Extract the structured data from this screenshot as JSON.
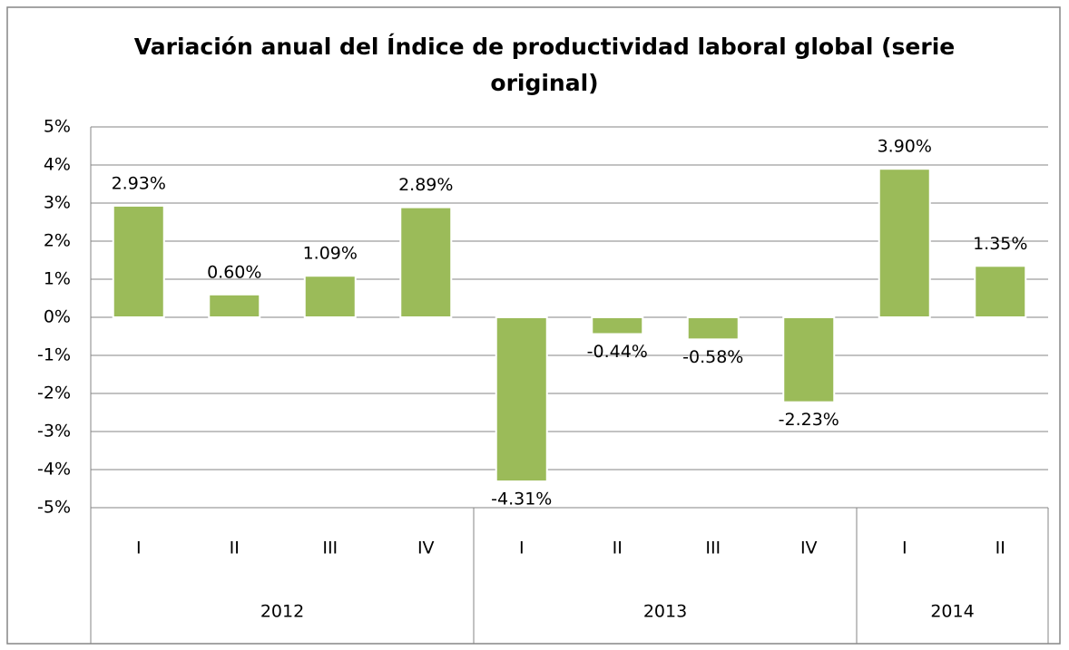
{
  "chart_data": {
    "type": "bar",
    "title": "Variación anual del Índice de productividad laboral global (serie original)",
    "categories": [
      "I",
      "II",
      "III",
      "IV",
      "I",
      "II",
      "III",
      "IV",
      "I",
      "II"
    ],
    "groups": [
      {
        "label": "2012",
        "span": 4
      },
      {
        "label": "2013",
        "span": 4
      },
      {
        "label": "2014",
        "span": 2
      }
    ],
    "values": [
      2.93,
      0.6,
      1.09,
      2.89,
      -4.31,
      -0.44,
      -0.58,
      -2.23,
      3.9,
      1.35
    ],
    "value_labels": [
      "2.93%",
      "0.60%",
      "1.09%",
      "2.89%",
      "-4.31%",
      "-0.44%",
      "-0.58%",
      "-2.23%",
      "3.90%",
      "1.35%"
    ],
    "color": "#9bbb59",
    "ylim": [
      -5,
      5
    ],
    "yticks": [
      {
        "value": -5,
        "label": "-5%"
      },
      {
        "value": -4,
        "label": "-4%"
      },
      {
        "value": -3,
        "label": "-3%"
      },
      {
        "value": -2,
        "label": "-2%"
      },
      {
        "value": -1,
        "label": "-1%"
      },
      {
        "value": 0,
        "label": "0%"
      },
      {
        "value": 1,
        "label": "1%"
      },
      {
        "value": 2,
        "label": "2%"
      },
      {
        "value": 3,
        "label": "3%"
      },
      {
        "value": 4,
        "label": "4%"
      },
      {
        "value": 5,
        "label": "5%"
      }
    ],
    "grid": true
  }
}
